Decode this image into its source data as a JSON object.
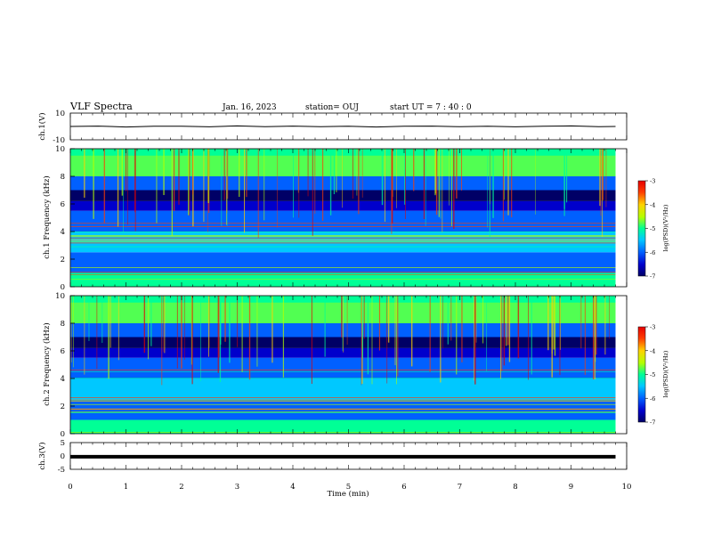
{
  "header": {
    "title": "VLF Spectra",
    "date": "Jan. 16, 2023",
    "station": "station= OUJ",
    "start": "start  UT =   7 : 40 : 0"
  },
  "chart_data": [
    {
      "type": "line",
      "name": "ch1-waveform",
      "ylabel": "ch.1(V)",
      "ylim": [
        -10,
        10
      ],
      "y_ticks": [
        "10",
        "-10"
      ],
      "x": [
        0,
        0.5,
        1,
        1.5,
        2,
        2.5,
        3,
        3.5,
        4,
        4.5,
        5,
        5.5,
        6,
        6.5,
        7,
        7.5,
        8,
        8.5,
        9,
        9.5,
        9.8
      ],
      "y": [
        0,
        0.3,
        -0.4,
        0.2,
        0.1,
        -0.3,
        0.4,
        -0.2,
        0.3,
        -0.1,
        0.2,
        -0.4,
        0.1,
        0.3,
        -0.2,
        0.2,
        -0.3,
        0.1,
        0.4,
        -0.2,
        0
      ]
    },
    {
      "type": "heatmap",
      "name": "ch1-spectrogram",
      "ylabel": "ch.1 Frequency (kHz)",
      "ylim": [
        0,
        10
      ],
      "y_ticks": [
        "0",
        "2",
        "4",
        "6",
        "8",
        "10"
      ],
      "colorbar": {
        "label": "log(PSD)(V²/Hz)",
        "range": [
          -7,
          -3
        ],
        "ticks": [
          "-3",
          "-4",
          "-5",
          "-6",
          "-7"
        ]
      }
    },
    {
      "type": "heatmap",
      "name": "ch2-spectrogram",
      "ylabel": "ch.2 Frequency (kHz)",
      "ylim": [
        0,
        10
      ],
      "y_ticks": [
        "0",
        "2",
        "4",
        "6",
        "8",
        "10"
      ],
      "colorbar": {
        "label": "log(PSD)(V²/Hz)",
        "range": [
          -7,
          -3
        ],
        "ticks": [
          "-3",
          "-4",
          "-5",
          "-6",
          "-7"
        ]
      }
    },
    {
      "type": "line",
      "name": "ch3-waveform",
      "ylabel": "ch.3(V)",
      "ylim": [
        -5,
        5
      ],
      "y_ticks": [
        "5",
        "0",
        "-5"
      ],
      "x": [
        0,
        9.8
      ],
      "y": [
        -0.3,
        -0.3
      ]
    }
  ],
  "x_axis": {
    "label": "Time (min)",
    "xlim": [
      0,
      10
    ],
    "ticks": [
      "0",
      "1",
      "2",
      "3",
      "4",
      "5",
      "6",
      "7",
      "8",
      "9",
      "10"
    ]
  },
  "colors": {
    "colormap": [
      "#000066",
      "#0000cc",
      "#0060ff",
      "#00c8ff",
      "#00ff96",
      "#b4ff00",
      "#ffd200",
      "#ff3c00",
      "#e60000"
    ]
  }
}
